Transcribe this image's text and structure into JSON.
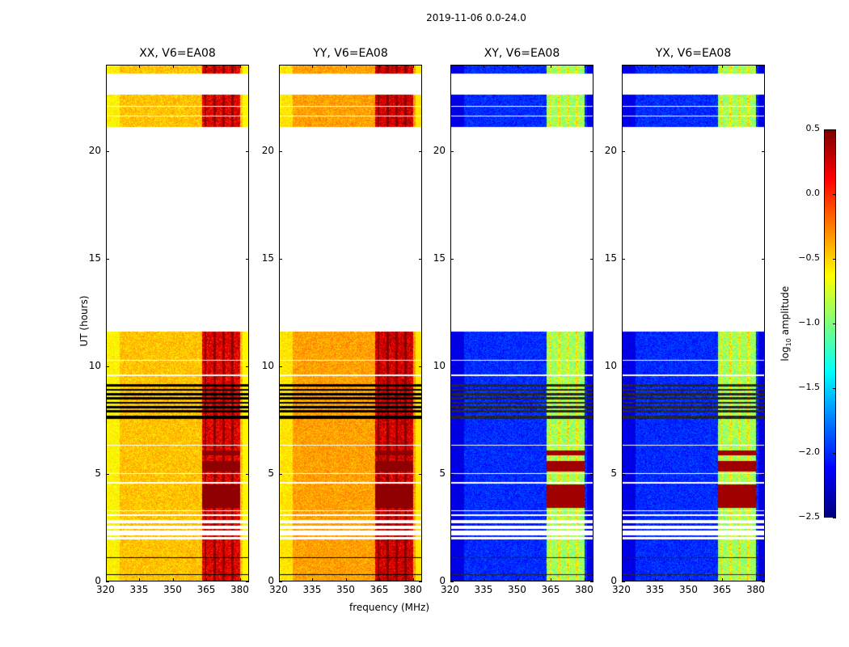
{
  "suptitle": "2019-11-06 0.0-24.0",
  "chart_data": {
    "type": "heatmap",
    "xlabel": "frequency (MHz)",
    "ylabel": "UT (hours)",
    "xlim": [
      320,
      384
    ],
    "ylim": [
      0,
      24
    ],
    "xticks": [
      "320",
      "335",
      "350",
      "365",
      "380"
    ],
    "xtick_values": [
      320,
      335,
      350,
      365,
      380
    ],
    "yticks": [
      "0",
      "5",
      "10",
      "15",
      "20"
    ],
    "ytick_values": [
      0,
      5,
      10,
      15,
      20
    ],
    "colorbar": {
      "label_prefix": "log",
      "label_sub": "10",
      "label_suffix": " amplitude",
      "range": [
        -2.5,
        0.5
      ],
      "ticks": [
        "0.5",
        "0.0",
        "−0.5",
        "−1.0",
        "−1.5",
        "−2.0",
        "−2.5"
      ],
      "tick_values": [
        0.5,
        0.0,
        -0.5,
        -1.0,
        -1.5,
        -2.0,
        -2.5
      ],
      "colormap": "jet"
    },
    "data_segments_hours": [
      [
        0,
        1.95
      ],
      [
        2.05,
        2.15
      ],
      [
        2.35,
        2.45
      ],
      [
        2.6,
        2.7
      ],
      [
        2.85,
        3.05
      ],
      [
        3.1,
        11.6
      ],
      [
        21.1,
        22.6
      ],
      [
        23.6,
        24.0
      ]
    ],
    "flagged_black_hours": [
      [
        1.95,
        2.05
      ],
      [
        7.55,
        7.7
      ],
      [
        7.85,
        7.95
      ],
      [
        8.05,
        8.15
      ],
      [
        8.25,
        8.35
      ],
      [
        8.45,
        8.55
      ],
      [
        8.65,
        8.75
      ],
      [
        8.85,
        8.95
      ],
      [
        9.05,
        9.15
      ],
      [
        1.1,
        1.13
      ],
      [
        0.3,
        0.33
      ]
    ],
    "blank_lines_hours": [
      [
        3.25,
        3.32
      ],
      [
        4.55,
        4.62
      ],
      [
        5.0,
        5.05
      ],
      [
        6.3,
        6.35
      ],
      [
        9.55,
        9.6
      ],
      [
        10.25,
        10.3
      ],
      [
        21.6,
        21.65
      ],
      [
        22.05,
        22.1
      ]
    ],
    "rfi_band_mhz": [
      363,
      380
    ],
    "hot_hours": [
      [
        3.4,
        4.5
      ],
      [
        5.1,
        5.6
      ],
      [
        5.85,
        6.1
      ]
    ],
    "panels": [
      {
        "title": "XX, V6=EA08",
        "base": -0.45,
        "low_edge": -0.6,
        "rfi": 0.2,
        "hot": 0.45
      },
      {
        "title": "YY, V6=EA08",
        "base": -0.35,
        "low_edge": -0.55,
        "rfi": 0.25,
        "hot": 0.45
      },
      {
        "title": "XY, V6=EA08",
        "base": -2.0,
        "low_edge": -2.2,
        "rfi": -0.9,
        "hot": 0.4
      },
      {
        "title": "YX, V6=EA08",
        "base": -2.0,
        "low_edge": -2.2,
        "rfi": -0.9,
        "hot": 0.4
      }
    ]
  }
}
